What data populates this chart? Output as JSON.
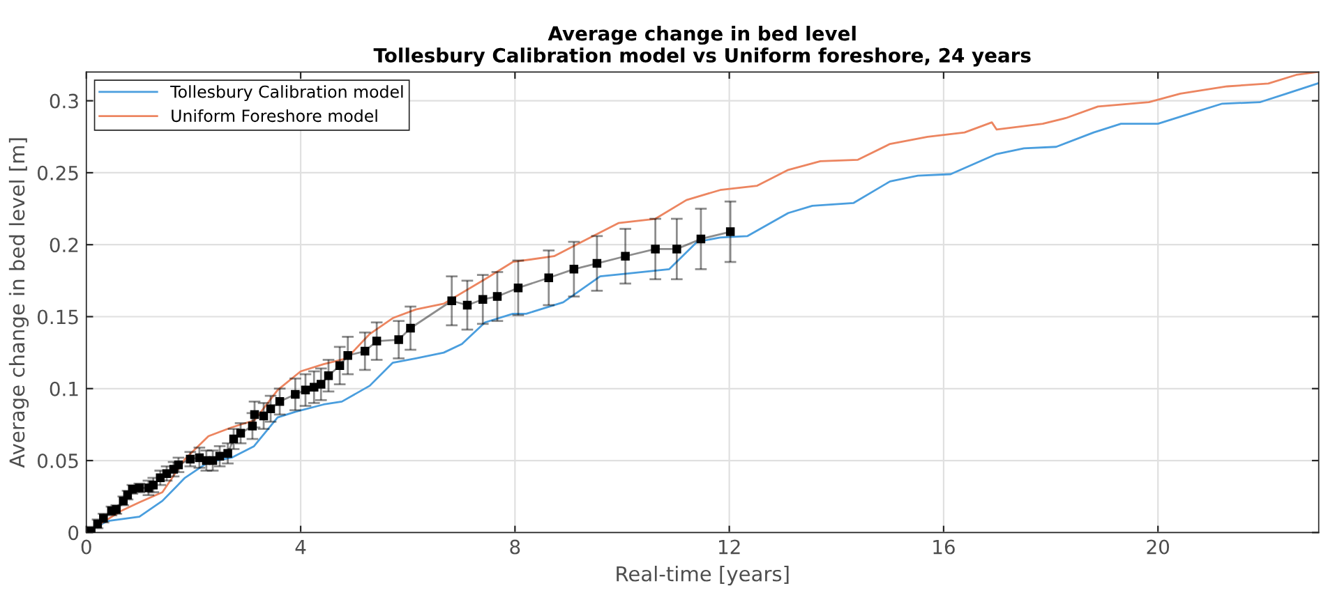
{
  "chart_data": {
    "type": "line",
    "title": "Average change in bed level",
    "subtitle": "Tollesbury Calibration model vs Uniform foreshore, 24 years",
    "xlabel": "Real-time [years]",
    "ylabel": "Average change in bed level [m]",
    "xlim": [
      0,
      23
    ],
    "ylim": [
      0,
      0.32
    ],
    "xticks": [
      0,
      4,
      8,
      12,
      16,
      20
    ],
    "yticks": [
      0,
      0.05,
      0.1,
      0.15,
      0.2,
      0.25,
      0.3
    ],
    "grid": true,
    "legend": "top left",
    "series": [
      {
        "name": "Tollesbury Calibration model",
        "color": "#4a9ede",
        "marker": "none",
        "x": [
          0,
          0.39,
          0.99,
          1.42,
          1.84,
          2.28,
          2.71,
          3.13,
          3.57,
          3.91,
          4.43,
          4.77,
          5.29,
          5.72,
          6.15,
          6.67,
          7.01,
          7.44,
          7.96,
          8.21,
          8.9,
          9.59,
          10.1,
          10.88,
          11.4,
          11.83,
          12.34,
          13.1,
          13.55,
          14.32,
          15.0,
          15.52,
          16.13,
          16.99,
          17.5,
          18.1,
          18.8,
          19.31,
          20.0,
          20.68,
          21.2,
          21.9,
          22.4,
          22.98
        ],
        "values": [
          0,
          0.008,
          0.011,
          0.022,
          0.038,
          0.049,
          0.052,
          0.06,
          0.08,
          0.084,
          0.089,
          0.091,
          0.102,
          0.118,
          0.121,
          0.125,
          0.131,
          0.146,
          0.152,
          0.152,
          0.16,
          0.178,
          0.18,
          0.183,
          0.202,
          0.205,
          0.206,
          0.222,
          0.227,
          0.229,
          0.244,
          0.248,
          0.249,
          0.263,
          0.267,
          0.268,
          0.278,
          0.284,
          0.284,
          0.292,
          0.298,
          0.299,
          0.305,
          0.312
        ]
      },
      {
        "name": "Uniform Foreshore model",
        "color": "#ec8560",
        "marker": "none",
        "x": [
          0,
          0.65,
          0.99,
          1.42,
          1.84,
          2.28,
          2.71,
          3.14,
          3.57,
          4.0,
          4.43,
          4.86,
          5.29,
          5.72,
          6.15,
          6.67,
          7.44,
          7.96,
          8.73,
          9.25,
          9.93,
          10.62,
          11.2,
          11.83,
          12.52,
          13.1,
          13.7,
          14.4,
          15.0,
          15.7,
          16.39,
          16.9,
          16.99,
          17.85,
          18.28,
          18.88,
          19.83,
          20.42,
          21.29,
          22.06,
          22.58,
          22.98
        ],
        "values": [
          0,
          0.015,
          0.021,
          0.028,
          0.051,
          0.067,
          0.073,
          0.078,
          0.099,
          0.112,
          0.117,
          0.121,
          0.138,
          0.149,
          0.155,
          0.159,
          0.176,
          0.188,
          0.192,
          0.202,
          0.215,
          0.218,
          0.231,
          0.238,
          0.241,
          0.252,
          0.258,
          0.259,
          0.27,
          0.275,
          0.278,
          0.285,
          0.28,
          0.284,
          0.288,
          0.296,
          0.299,
          0.305,
          0.31,
          0.312,
          0.318,
          0.32
        ]
      },
      {
        "color": "#000000",
        "marker": "square",
        "x": [
          0.09,
          0.21,
          0.32,
          0.47,
          0.56,
          0.69,
          0.77,
          0.86,
          0.99,
          1.16,
          1.25,
          1.38,
          1.5,
          1.63,
          1.72,
          1.94,
          2.11,
          2.24,
          2.36,
          2.49,
          2.64,
          2.75,
          2.88,
          3.1,
          3.14,
          3.31,
          3.44,
          3.61,
          3.9,
          4.09,
          4.25,
          4.38,
          4.52,
          4.73,
          4.88,
          5.2,
          5.42,
          5.83,
          6.05,
          6.82,
          7.11,
          7.4,
          7.67,
          8.06,
          8.63,
          9.1,
          9.53,
          10.06,
          10.62,
          11.02,
          11.47,
          12.02
        ],
        "values": [
          0.001,
          0.006,
          0.01,
          0.015,
          0.016,
          0.022,
          0.026,
          0.03,
          0.031,
          0.031,
          0.033,
          0.038,
          0.041,
          0.044,
          0.047,
          0.051,
          0.052,
          0.05,
          0.05,
          0.053,
          0.055,
          0.065,
          0.069,
          0.074,
          0.082,
          0.081,
          0.086,
          0.091,
          0.096,
          0.099,
          0.101,
          0.103,
          0.109,
          0.116,
          0.123,
          0.126,
          0.133,
          0.134,
          0.142,
          0.161,
          0.158,
          0.162,
          0.164,
          0.17,
          0.177,
          0.183,
          0.187,
          0.192,
          0.197,
          0.197,
          0.204,
          0.209
        ],
        "errors": [
          0.003,
          0.003,
          0.003,
          0.003,
          0.003,
          0.003,
          0.003,
          0.003,
          0.003,
          0.005,
          0.005,
          0.005,
          0.005,
          0.005,
          0.005,
          0.005,
          0.007,
          0.007,
          0.007,
          0.007,
          0.007,
          0.007,
          0.007,
          0.009,
          0.009,
          0.009,
          0.009,
          0.009,
          0.011,
          0.011,
          0.011,
          0.011,
          0.011,
          0.013,
          0.013,
          0.013,
          0.013,
          0.013,
          0.015,
          0.017,
          0.017,
          0.017,
          0.017,
          0.019,
          0.019,
          0.019,
          0.019,
          0.019,
          0.021,
          0.021,
          0.021,
          0.021
        ]
      }
    ]
  }
}
